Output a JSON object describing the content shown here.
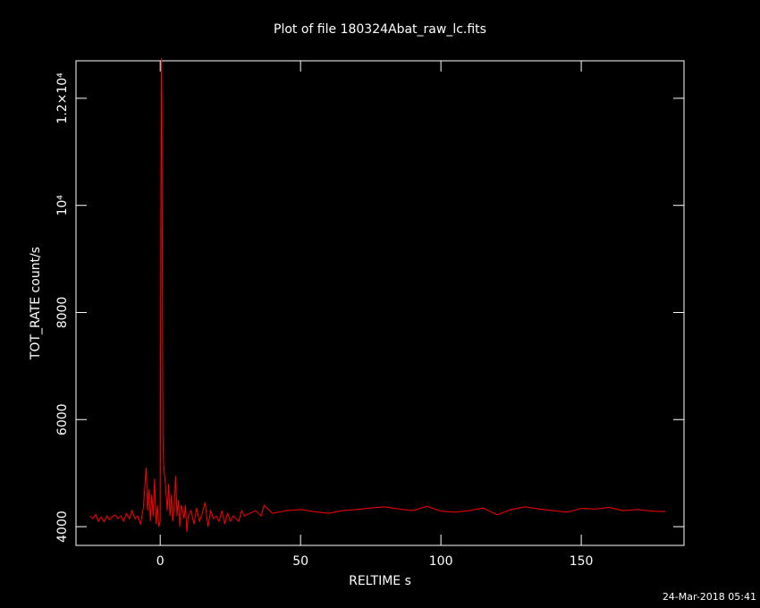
{
  "chart_data": {
    "type": "line",
    "title": "Plot of file 180324Abat_raw_lc.fits",
    "x_label": "RELTIME  s",
    "y_label": "TOT_RATE  count/s",
    "footer": "24-Mar-2018 05:41",
    "xlim": [
      -30,
      186.6
    ],
    "ylim": [
      3650,
      12700
    ],
    "xticks": [
      0,
      50,
      100,
      150
    ],
    "yticks": [
      4000,
      6000,
      8000,
      {
        "value": 10000,
        "label": "10⁴"
      },
      {
        "value": 12000,
        "label": "1.2×10⁴"
      }
    ],
    "x": [
      -25,
      -24,
      -23,
      -22,
      -21,
      -20,
      -19,
      -18,
      -17,
      -16,
      -15,
      -14,
      -13,
      -12,
      -11,
      -10,
      -9,
      -8,
      -7,
      -6,
      -5,
      -4.5,
      -4,
      -3.5,
      -3,
      -2.5,
      -2,
      -1.5,
      -1,
      -0.5,
      0,
      0.2,
      0.4,
      0.6,
      0.8,
      1,
      1.2,
      1.5,
      2,
      2.5,
      3,
      3.5,
      4,
      4.5,
      5,
      5.5,
      6,
      6.5,
      7,
      7.5,
      8,
      8.5,
      9,
      9.5,
      10,
      11,
      12,
      13,
      14,
      15,
      16,
      17,
      18,
      19,
      20,
      21,
      22,
      23,
      24,
      25,
      26,
      27,
      28,
      29,
      30,
      32,
      34,
      36,
      37,
      40,
      45,
      50,
      55,
      60,
      65,
      70,
      75,
      80,
      85,
      90,
      95,
      100,
      105,
      110,
      115,
      120,
      125,
      130,
      135,
      140,
      145,
      150,
      155,
      160,
      165,
      170,
      175,
      180
    ],
    "series": [
      {
        "name": "TOT_RATE",
        "color": "#ff0000",
        "values": [
          4200,
          4150,
          4230,
          4100,
          4180,
          4090,
          4200,
          4130,
          4190,
          4220,
          4150,
          4200,
          4100,
          4250,
          4150,
          4300,
          4150,
          4200,
          4050,
          4350,
          5100,
          4300,
          4700,
          4100,
          4600,
          4200,
          4900,
          4050,
          4400,
          4000,
          4100,
          9000,
          12750,
          11800,
          8000,
          5600,
          5200,
          5000,
          4700,
          4300,
          4800,
          4200,
          4600,
          4100,
          4400,
          4950,
          4200,
          4500,
          4000,
          4400,
          4300,
          4150,
          4400,
          3900,
          4200,
          4300,
          4050,
          4350,
          4100,
          4250,
          4450,
          4000,
          4300,
          4150,
          4200,
          4100,
          4300,
          4050,
          4250,
          4100,
          4200,
          4150,
          4100,
          4300,
          4200,
          4250,
          4300,
          4200,
          4400,
          4250,
          4300,
          4320,
          4280,
          4250,
          4300,
          4320,
          4350,
          4370,
          4330,
          4300,
          4380,
          4290,
          4270,
          4300,
          4350,
          4220,
          4320,
          4370,
          4330,
          4300,
          4270,
          4340,
          4330,
          4360,
          4300,
          4320,
          4290,
          4280
        ]
      }
    ]
  }
}
